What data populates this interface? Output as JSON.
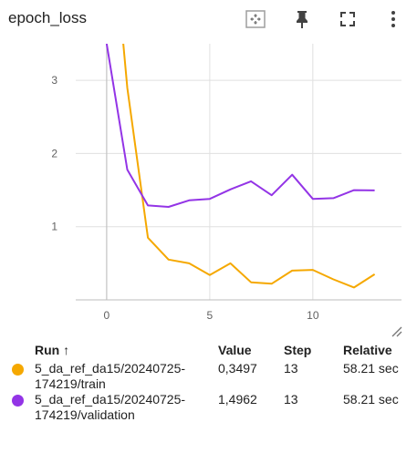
{
  "header": {
    "title": "epoch_loss",
    "icons": [
      "fit-to-data-icon",
      "pin-icon",
      "fullscreen-icon",
      "more-vert-icon"
    ]
  },
  "chart_data": {
    "type": "line",
    "xlim": [
      -1.5,
      14.3
    ],
    "ylim": [
      0,
      3.5
    ],
    "x_ticks": [
      0,
      5,
      10
    ],
    "y_ticks": [
      1,
      2,
      3
    ],
    "grid": true,
    "series": [
      {
        "name": "5_da_ref_da15/20240725-174219/train",
        "color": "#f5a800",
        "x": [
          0,
          1,
          2,
          3,
          4,
          5,
          6,
          7,
          8,
          9,
          10,
          11,
          12,
          13
        ],
        "y": [
          6.0,
          2.9,
          0.85,
          0.55,
          0.5,
          0.34,
          0.5,
          0.24,
          0.22,
          0.4,
          0.41,
          0.28,
          0.17,
          0.3497
        ]
      },
      {
        "name": "5_da_ref_da15/20240725-174219/validation",
        "color": "#9334e6",
        "x": [
          0,
          1,
          2,
          3,
          4,
          5,
          6,
          7,
          8,
          9,
          10,
          11,
          12,
          13
        ],
        "y": [
          3.5,
          1.78,
          1.29,
          1.27,
          1.36,
          1.38,
          1.51,
          1.62,
          1.43,
          1.71,
          1.38,
          1.39,
          1.5,
          1.4962
        ]
      }
    ]
  },
  "table": {
    "headers": {
      "run": "Run ↑",
      "value": "Value",
      "step": "Step",
      "relative": "Relative"
    },
    "rows": [
      {
        "color": "#f5a800",
        "run_line1": "5_da_ref_da15/20240725-",
        "run_line2": "174219/train",
        "value": "0,3497",
        "step": "13",
        "relative": "58.21 sec"
      },
      {
        "color": "#9334e6",
        "run_line1": "5_da_ref_da15/20240725-",
        "run_line2": "174219/validation",
        "value": "1,4962",
        "step": "13",
        "relative": "58.21 sec"
      }
    ]
  }
}
